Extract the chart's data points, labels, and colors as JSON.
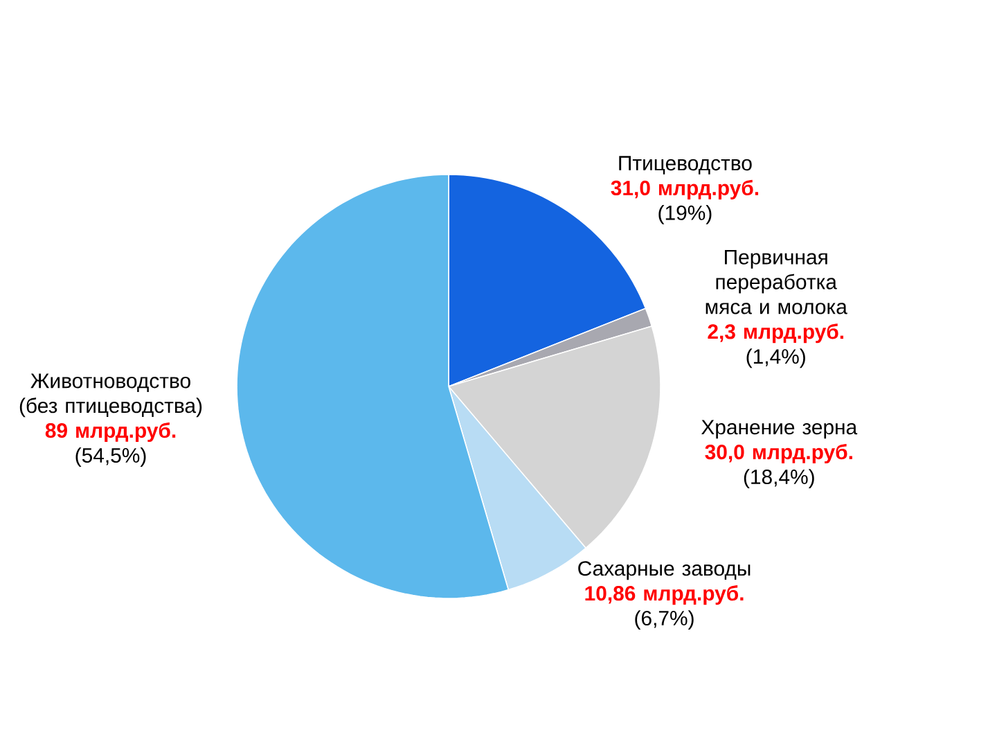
{
  "chart_data": {
    "type": "pie",
    "categories": [
      "Птицеводство",
      "Первичная переработка мяса и молока",
      "Хранение зерна",
      "Сахарные заводы",
      "Животноводство (без птицеводства)"
    ],
    "values": [
      31.0,
      2.3,
      30.0,
      10.86,
      89
    ],
    "value_labels": [
      "31,0 млрд.руб.",
      "2,3 млрд.руб.",
      "30,0 млрд.руб.",
      "10,86 млрд.руб.",
      "89 млрд.руб."
    ],
    "annotations": [
      "(19%)",
      "(1,4%)",
      "(18,4%)",
      "(6,7%)",
      "(54,5%)"
    ],
    "colors": [
      "#1464e0",
      "#a8a8b0",
      "#d4d4d4",
      "#b8dcf4",
      "#5cb8ec"
    ]
  }
}
